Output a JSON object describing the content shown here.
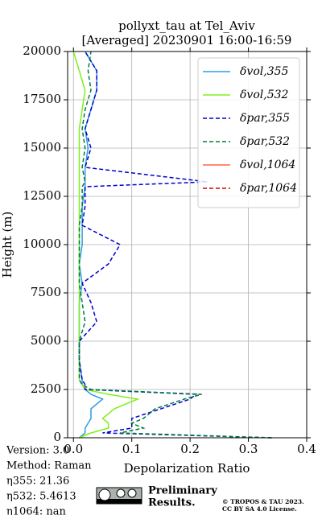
{
  "chart_data": {
    "type": "line",
    "title": [
      "pollyxt_tau at Tel_Aviv",
      "[Averaged] 20230901 16:00-16:59"
    ],
    "xlabel": "Depolarization Ratio",
    "ylabel": "Height (m)",
    "xlim": [
      -0.01,
      0.4
    ],
    "ylim": [
      0,
      20000
    ],
    "xticks": [
      {
        "value": 0,
        "label": "0.0"
      },
      0.1,
      0.2,
      0.3,
      0.4
    ],
    "yticks": [
      0,
      2500,
      5000,
      7500,
      10000,
      12500,
      15000,
      17500,
      20000
    ],
    "grid": true,
    "legend": "upper right",
    "y": [
      0,
      250,
      500,
      750,
      1000,
      1500,
      2000,
      2250,
      2500,
      2750,
      3000,
      4000,
      5000,
      6000,
      7000,
      8000,
      9000,
      10000,
      11000,
      12000,
      13000,
      13250,
      14000,
      15000,
      16000,
      17000,
      18000,
      19000,
      20000
    ],
    "series": [
      {
        "name": "δvol,355",
        "color": "#2f9be8",
        "linestyle": "solid",
        "x": [
          0.01,
          0.02,
          0.02,
          0.025,
          0.03,
          0.03,
          0.05,
          0.03,
          0.02,
          0.015,
          0.015,
          0.01,
          0.01,
          0.01,
          0.01,
          0.015,
          0.01,
          0.015,
          0.015,
          0.015,
          0.02,
          0.02,
          0.02,
          0.025,
          0.02,
          0.03,
          0.04,
          0.04,
          0.02
        ]
      },
      {
        "name": "δvol,532",
        "color": "#7ef01a",
        "linestyle": "solid",
        "x": [
          0.01,
          0.03,
          0.06,
          0.06,
          0.05,
          0.07,
          0.11,
          0.06,
          0.02,
          0.015,
          0.01,
          0.01,
          0.01,
          0.01,
          0.01,
          0.01,
          0.01,
          0.01,
          0.01,
          0.01,
          0.01,
          0.01,
          0.01,
          0.01,
          0.01,
          0.015,
          0.02,
          0.01,
          0.0
        ]
      },
      {
        "name": "δpar,355",
        "color": "#0000cc",
        "linestyle": "dashed",
        "x": [
          0.34,
          0.05,
          0.1,
          0.1,
          0.1,
          0.15,
          0.2,
          0.21,
          0.02,
          0.02,
          0.015,
          0.01,
          0.01,
          0.04,
          0.03,
          0.015,
          0.06,
          0.08,
          0.015,
          0.02,
          0.02,
          0.23,
          0.02,
          0.03,
          0.02,
          0.03,
          0.04,
          0.04,
          0.02
        ]
      },
      {
        "name": "δpar,532",
        "color": "#007a3d",
        "linestyle": "dashed",
        "x": [
          0.34,
          0.08,
          0.12,
          0.1,
          0.12,
          0.14,
          0.19,
          0.22,
          0.03,
          0.015,
          0.01,
          0.01,
          0.01,
          0.02,
          0.015,
          0.01,
          0.01,
          0.01,
          0.01,
          0.015,
          0.015,
          0.02,
          0.015,
          0.02,
          0.015,
          0.02,
          0.03,
          0.025,
          0.03
        ]
      },
      {
        "name": "δvol,1064",
        "color": "#ff6347",
        "linestyle": "solid",
        "x": [
          null,
          null,
          null,
          null,
          null,
          null,
          null,
          null,
          null,
          null,
          null,
          null,
          null,
          null,
          null,
          null,
          null,
          null,
          null,
          null,
          null,
          null,
          null,
          null,
          null,
          null,
          null,
          null,
          null
        ]
      },
      {
        "name": "δpar,1064",
        "color": "#d00000",
        "linestyle": "dashed",
        "x": [
          null,
          null,
          null,
          null,
          null,
          null,
          null,
          null,
          null,
          null,
          null,
          null,
          null,
          null,
          null,
          null,
          null,
          null,
          null,
          null,
          null,
          null,
          null,
          null,
          null,
          null,
          null,
          null,
          null
        ]
      }
    ],
    "annotations": {
      "info": [
        "Version: 3.0",
        "Method: Raman",
        "η355:  21.36",
        "η532: 5.4613",
        "η1064:    nan"
      ],
      "preliminary": [
        "Preliminary",
        "Results."
      ],
      "copyright": [
        "© TROPOS & TAU 2023.",
        "CC BY SA 4.0 License."
      ]
    }
  }
}
